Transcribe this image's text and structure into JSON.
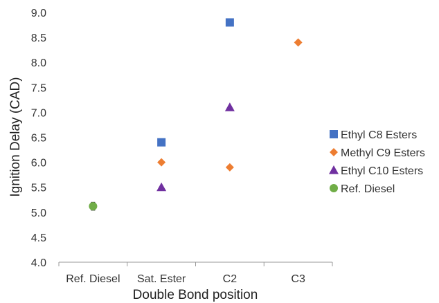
{
  "chart_data": {
    "type": "scatter",
    "xlabel": "Double Bond position",
    "ylabel": "Ignition Delay (CAD)",
    "categories": [
      "Ref. Diesel",
      "Sat. Ester",
      "C2",
      "C3"
    ],
    "ylim": [
      4.0,
      9.0
    ],
    "yticks": [
      "4.0",
      "4.5",
      "5.0",
      "5.5",
      "6.0",
      "6.5",
      "7.0",
      "7.5",
      "8.0",
      "8.5",
      "9.0"
    ],
    "grid": false,
    "legend_position": "right",
    "series": [
      {
        "name": "Ethyl C8 Esters",
        "marker": "square",
        "color": "#4472C4",
        "points": [
          {
            "x": "Sat. Ester",
            "y": 6.4
          },
          {
            "x": "C2",
            "y": 8.8
          }
        ]
      },
      {
        "name": "Methyl C9 Esters",
        "marker": "diamond",
        "color": "#ED7D31",
        "points": [
          {
            "x": "Sat. Ester",
            "y": 6.0
          },
          {
            "x": "C2",
            "y": 5.9
          },
          {
            "x": "C3",
            "y": 8.4
          }
        ]
      },
      {
        "name": "Ethyl C10 Esters",
        "marker": "triangle",
        "color": "#7030A0",
        "points": [
          {
            "x": "Sat. Ester",
            "y": 5.5
          },
          {
            "x": "C2",
            "y": 7.1
          }
        ]
      },
      {
        "name": "Ref. Diesel",
        "marker": "circle",
        "color": "#70AD47",
        "points": [
          {
            "x": "Ref. Diesel",
            "y": 5.12,
            "err": 0.08
          }
        ]
      }
    ]
  }
}
